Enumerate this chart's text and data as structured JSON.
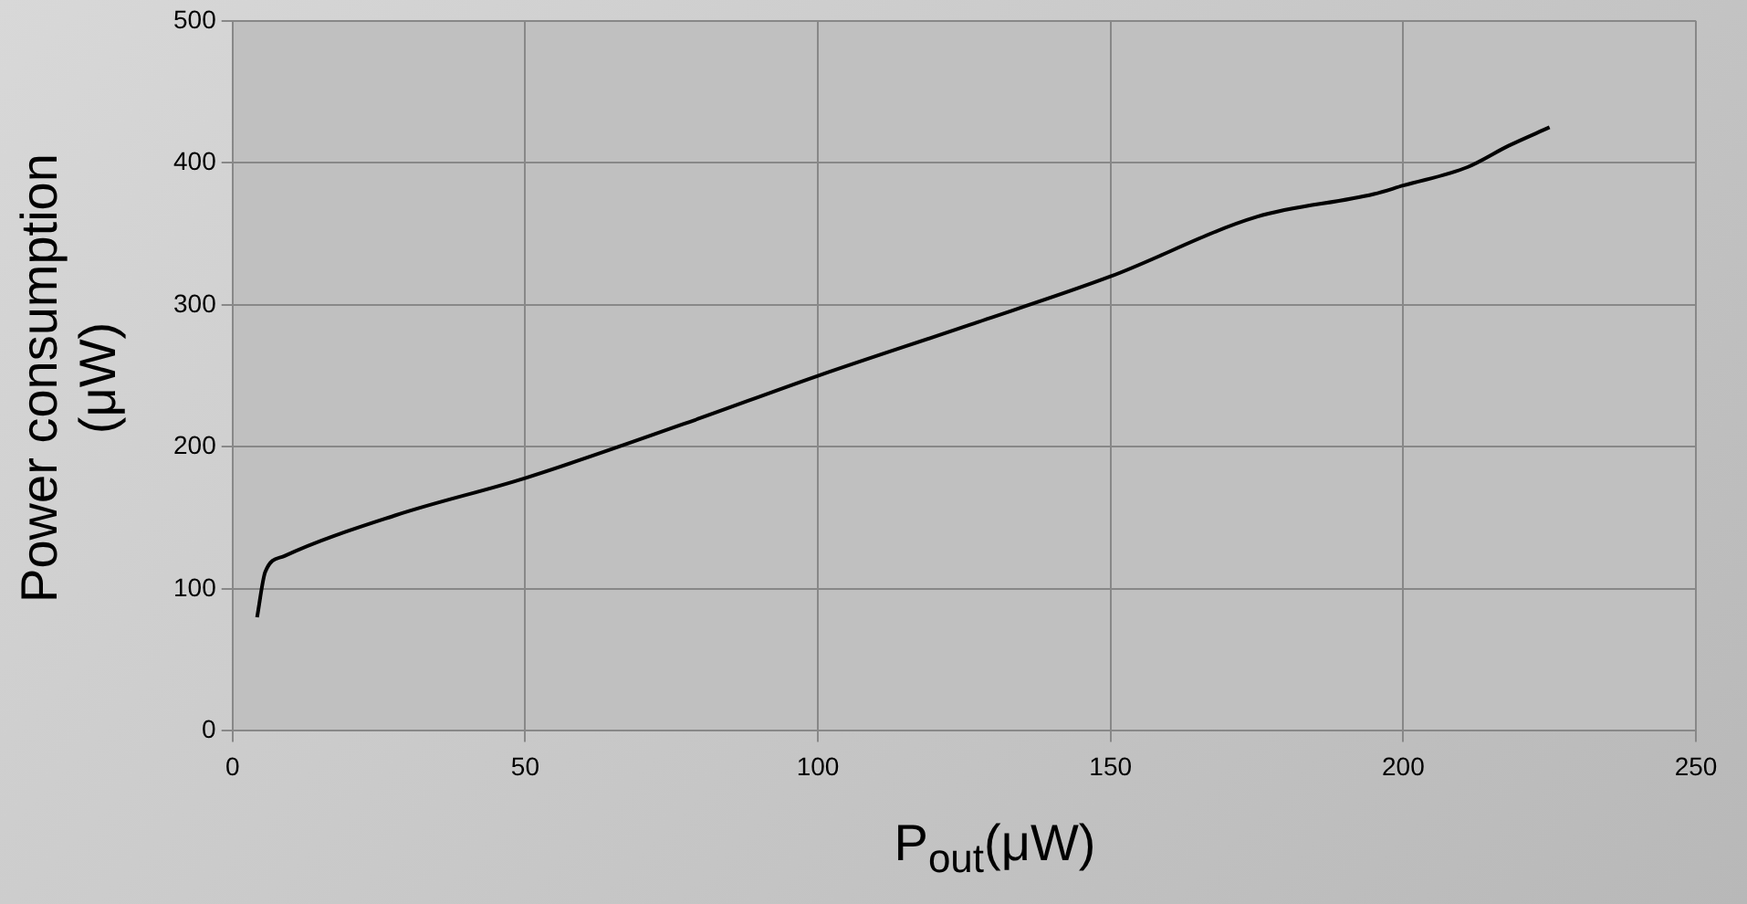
{
  "chart_data": {
    "type": "line",
    "xlabel": "P$_{out}$(μW)",
    "ylabel": "Power consumption (μW)",
    "xlim": [
      0,
      250
    ],
    "xticks": [
      0,
      50,
      100,
      150,
      200,
      250
    ],
    "ylim": [
      0,
      500
    ],
    "yticks": [
      0,
      100,
      200,
      300,
      400,
      500
    ],
    "grid": true,
    "legend": false,
    "marker": "none",
    "line_style": "solid",
    "series": [
      {
        "color": "#000000",
        "x": [
          4.2,
          5.6,
          8.8,
          28,
          50,
          77,
          100,
          126,
          150,
          175,
          195,
          200,
          211,
          218,
          225
        ],
        "values": [
          80,
          112,
          123,
          152,
          178,
          216,
          250,
          286,
          320,
          362,
          378,
          384,
          397,
          412,
          425
        ]
      }
    ]
  }
}
